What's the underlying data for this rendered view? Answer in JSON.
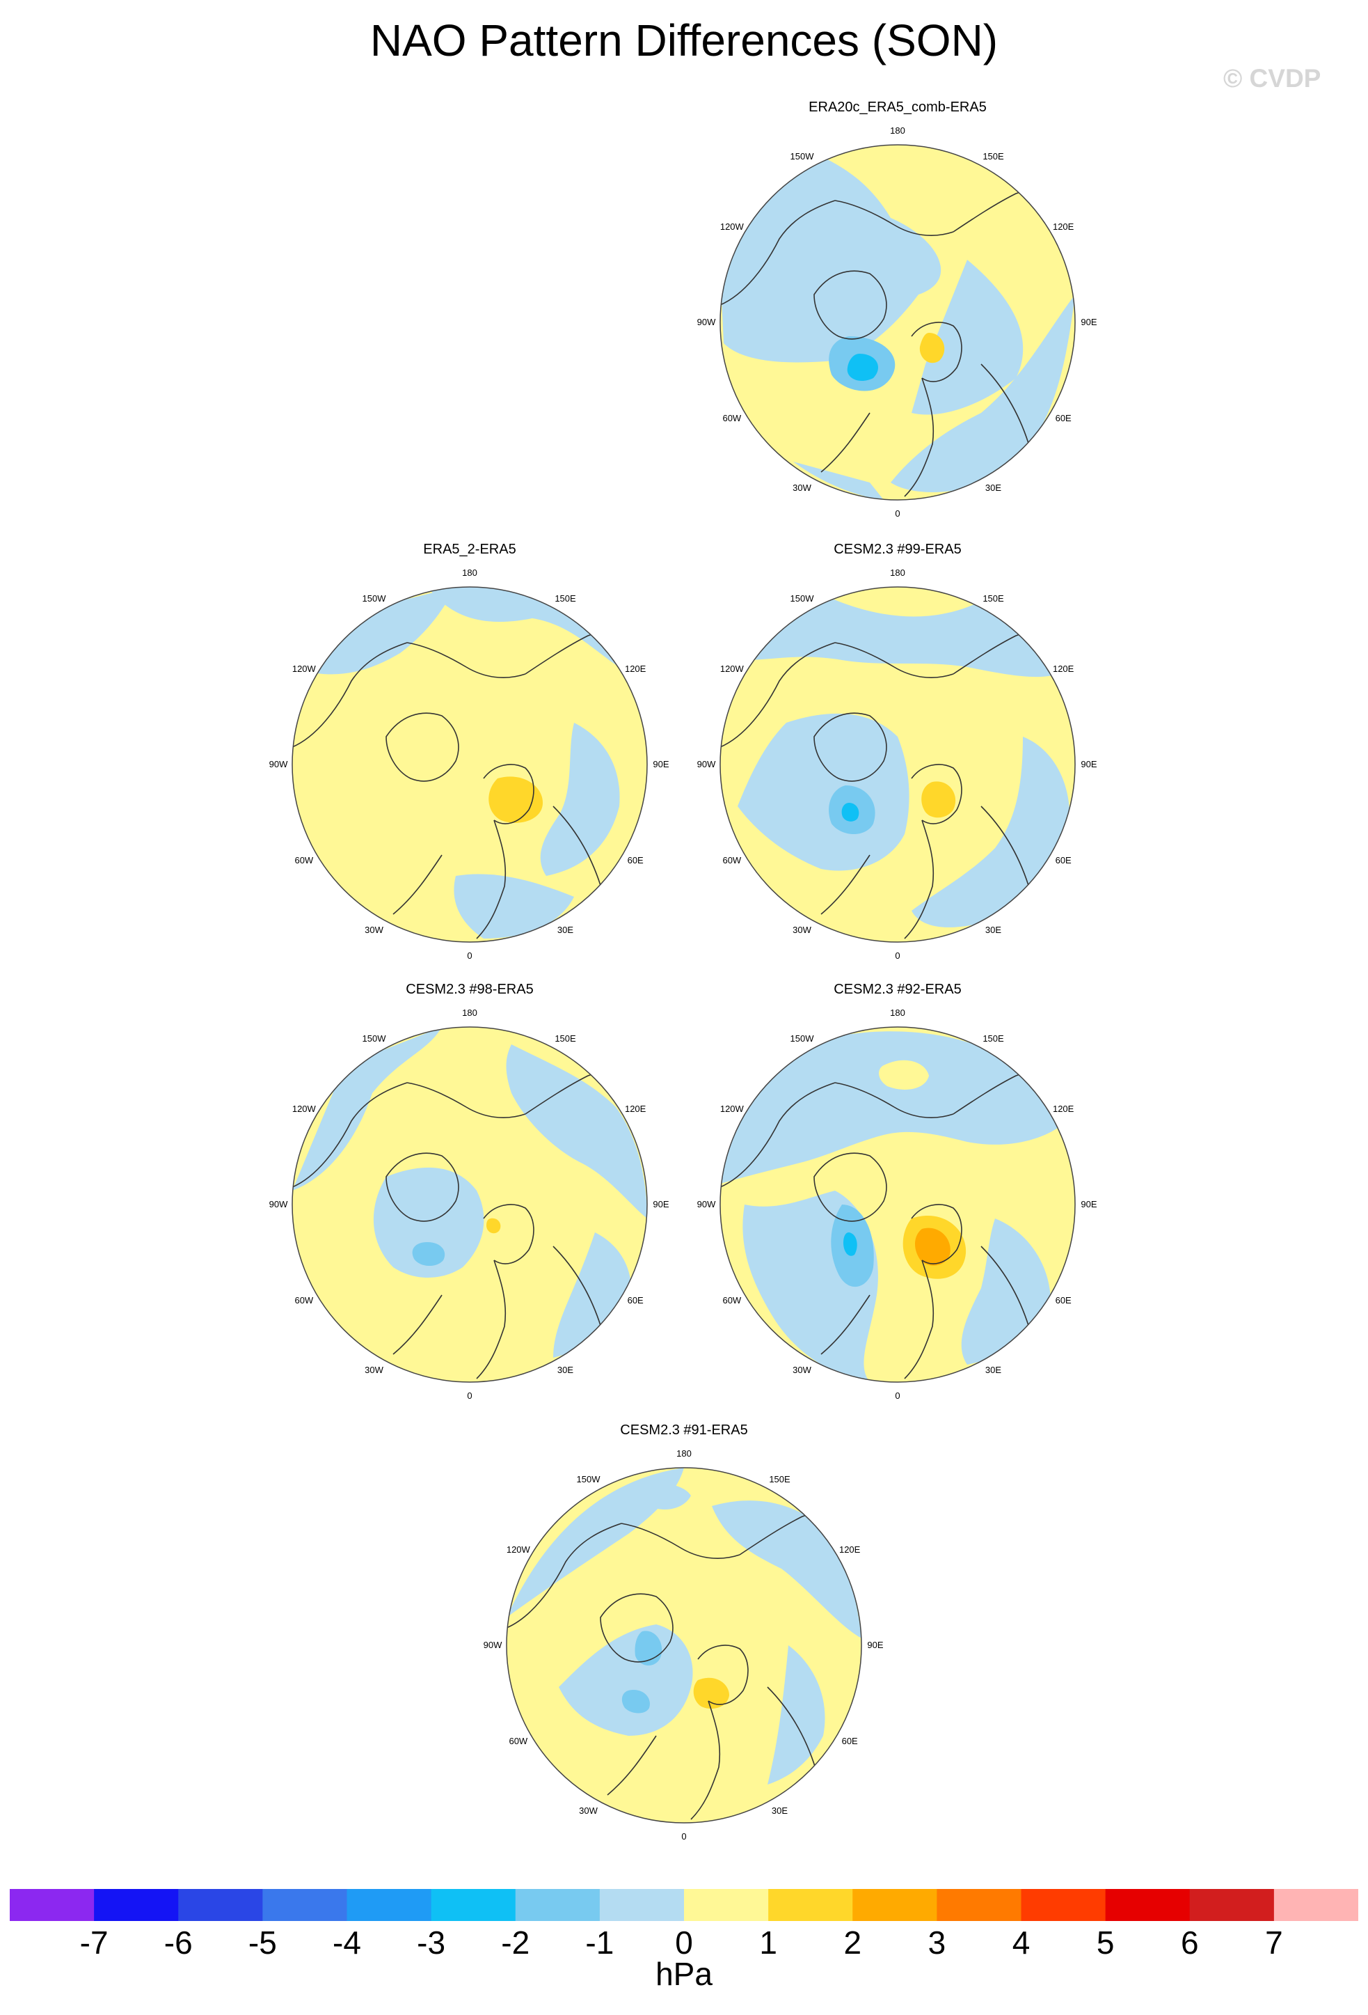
{
  "title": "NAO Pattern Differences (SON)",
  "watermark": "© CVDP",
  "colorbar": {
    "units": "hPa",
    "levels": [
      "-7",
      "-6",
      "-5",
      "-4",
      "-3",
      "-2",
      "-1",
      "0",
      "1",
      "2",
      "3",
      "4",
      "5",
      "6",
      "7"
    ],
    "colors": [
      "#8c28f0",
      "#1414f5",
      "#2a46e6",
      "#3a78ec",
      "#1f9bf5",
      "#0fc0f5",
      "#78caf0",
      "#b4dcf2",
      "#fff896",
      "#ffd72a",
      "#ffaa00",
      "#ff7a00",
      "#ff3c00",
      "#e60000",
      "#d21e1e",
      "#ffb4b4"
    ]
  },
  "lon_labels": [
    "180",
    "150E",
    "120E",
    "90E",
    "60E",
    "30E",
    "0",
    "30W",
    "60W",
    "90W",
    "120W",
    "150W"
  ],
  "chart_data": [
    {
      "type": "heatmap",
      "projection": "polar stereographic (NH)",
      "title": "ERA20c_ERA5_comb-ERA5",
      "features": [
        {
          "sign": "negative",
          "approx_value": -3,
          "region": "North Atlantic / south of Greenland"
        },
        {
          "sign": "positive",
          "approx_value": 2,
          "region": "Scandinavia / Barents Sea"
        }
      ]
    },
    {
      "type": "heatmap",
      "projection": "polar stereographic (NH)",
      "title": "ERA5_2-ERA5",
      "features": [
        {
          "sign": "positive",
          "approx_value": 2,
          "region": "Barents Sea / northern Russia"
        }
      ]
    },
    {
      "type": "heatmap",
      "projection": "polar stereographic (NH)",
      "title": "CESM2.3 #99-ERA5",
      "features": [
        {
          "sign": "negative",
          "approx_value": -3,
          "region": "North Atlantic"
        },
        {
          "sign": "positive",
          "approx_value": 2,
          "region": "Scandinavia"
        }
      ]
    },
    {
      "type": "heatmap",
      "projection": "polar stereographic (NH)",
      "title": "CESM2.3 #98-ERA5",
      "features": [
        {
          "sign": "negative",
          "approx_value": -2,
          "region": "North Atlantic"
        },
        {
          "sign": "positive",
          "approx_value": 2,
          "region": "Norwegian Sea"
        }
      ]
    },
    {
      "type": "heatmap",
      "projection": "polar stereographic (NH)",
      "title": "CESM2.3 #92-ERA5",
      "features": [
        {
          "sign": "negative",
          "approx_value": -3,
          "region": "Greenland / western Atlantic"
        },
        {
          "sign": "positive",
          "approx_value": 3,
          "region": "Scandinavia / Norwegian Sea"
        }
      ]
    },
    {
      "type": "heatmap",
      "projection": "polar stereographic (NH)",
      "title": "CESM2.3 #91-ERA5",
      "features": [
        {
          "sign": "negative",
          "approx_value": -2,
          "region": "Greenland / Labrador Sea"
        },
        {
          "sign": "positive",
          "approx_value": 2,
          "region": "Scandinavia"
        }
      ]
    }
  ]
}
